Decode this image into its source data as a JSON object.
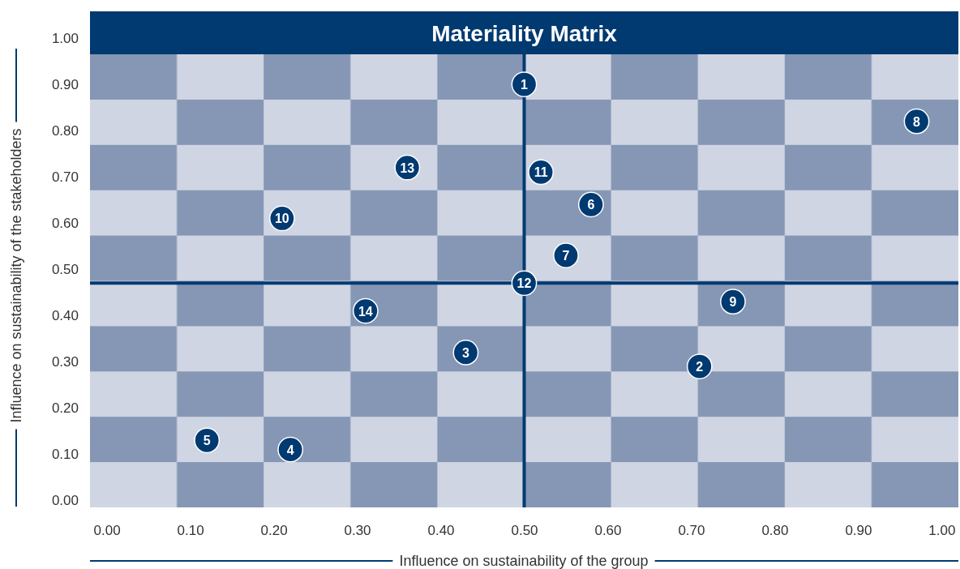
{
  "chart_data": {
    "type": "scatter",
    "title": "Materiality Matrix",
    "xlabel": "Influence on sustainability of the group",
    "ylabel": "Influence on sustainability of the stakeholders",
    "xlim": [
      -0.02,
      1.02
    ],
    "ylim": [
      -0.015,
      1.0
    ],
    "xticks": [
      {
        "value": 0,
        "label": "0.00"
      },
      {
        "value": 0.1,
        "label": "0.10"
      },
      {
        "value": 0.2,
        "label": "0.20"
      },
      {
        "value": 0.3,
        "label": "0.30"
      },
      {
        "value": 0.4,
        "label": "0.40"
      },
      {
        "value": 0.5,
        "label": "0.50"
      },
      {
        "value": 0.6,
        "label": "0.60"
      },
      {
        "value": 0.7,
        "label": "0.70"
      },
      {
        "value": 0.8,
        "label": "0.80"
      },
      {
        "value": 0.9,
        "label": "0.90"
      },
      {
        "value": 1,
        "label": "1.00"
      }
    ],
    "yticks": [
      {
        "value": 0,
        "label": "0.00"
      },
      {
        "value": 0.1,
        "label": "0.10"
      },
      {
        "value": 0.2,
        "label": "0.20"
      },
      {
        "value": 0.3,
        "label": "0.30"
      },
      {
        "value": 0.4,
        "label": "0.40"
      },
      {
        "value": 0.5,
        "label": "0.50"
      },
      {
        "value": 0.6,
        "label": "0.60"
      },
      {
        "value": 0.7,
        "label": "0.70"
      },
      {
        "value": 0.8,
        "label": "0.80"
      },
      {
        "value": 0.9,
        "label": "0.90"
      },
      {
        "value": 1,
        "label": "1.00"
      }
    ],
    "marker": "circle",
    "series": [
      {
        "color": "#003a70",
        "x": [
          0.5,
          0.71,
          0.43,
          0.22,
          0.12,
          0.58,
          0.55,
          0.97,
          0.75,
          0.21,
          0.52,
          0.5,
          0.36,
          0.31
        ],
        "values": [
          0.9,
          0.29,
          0.32,
          0.11,
          0.13,
          0.64,
          0.53,
          0.82,
          0.43,
          0.61,
          0.71,
          0.47,
          0.72,
          0.41
        ]
      }
    ],
    "ref_lines": [
      {
        "axis": "x",
        "value": 0.5,
        "color": "#003a70"
      },
      {
        "axis": "y",
        "value": 0.47,
        "color": "#003a70"
      }
    ],
    "annotations": [
      {
        "text": "1",
        "x": 0.5,
        "y": 0.9
      },
      {
        "text": "2",
        "x": 0.71,
        "y": 0.29
      },
      {
        "text": "3",
        "x": 0.43,
        "y": 0.32
      },
      {
        "text": "4",
        "x": 0.22,
        "y": 0.11
      },
      {
        "text": "5",
        "x": 0.12,
        "y": 0.13
      },
      {
        "text": "6",
        "x": 0.58,
        "y": 0.64
      },
      {
        "text": "7",
        "x": 0.55,
        "y": 0.53
      },
      {
        "text": "8",
        "x": 0.97,
        "y": 0.82
      },
      {
        "text": "9",
        "x": 0.75,
        "y": 0.43
      },
      {
        "text": "10",
        "x": 0.21,
        "y": 0.61
      },
      {
        "text": "11",
        "x": 0.52,
        "y": 0.71
      },
      {
        "text": "12",
        "x": 0.5,
        "y": 0.47
      },
      {
        "text": "13",
        "x": 0.36,
        "y": 0.72
      },
      {
        "text": "14",
        "x": 0.31,
        "y": 0.41
      }
    ]
  }
}
